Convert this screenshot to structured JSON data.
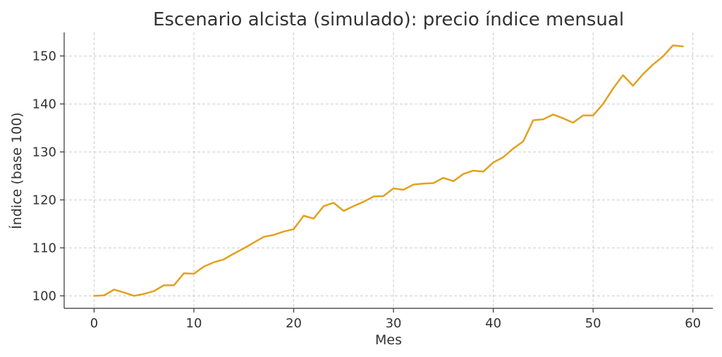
{
  "chart_data": {
    "type": "line",
    "title": "Escenario alcista (simulado): precio índice mensual",
    "xlabel": "Mes",
    "ylabel": "Índice (base 100)",
    "xlim": [
      -3,
      62
    ],
    "ylim": [
      97.4,
      154.9
    ],
    "xticks": [
      0,
      10,
      20,
      30,
      40,
      50,
      60
    ],
    "yticks": [
      100,
      110,
      120,
      130,
      140,
      150
    ],
    "grid": true,
    "line_color": "#E0A21E",
    "x": [
      0,
      1,
      2,
      3,
      4,
      5,
      6,
      7,
      8,
      9,
      10,
      11,
      12,
      13,
      14,
      15,
      16,
      17,
      18,
      19,
      20,
      21,
      22,
      23,
      24,
      25,
      26,
      27,
      28,
      29,
      30,
      31,
      32,
      33,
      34,
      35,
      36,
      37,
      38,
      39,
      40,
      41,
      42,
      43,
      44,
      45,
      46,
      47,
      48,
      49,
      50,
      51,
      52,
      53,
      54,
      55,
      56,
      57,
      58,
      59
    ],
    "series": [
      {
        "values": [
          100.0,
          100.1,
          101.3,
          100.7,
          100.0,
          100.4,
          101.0,
          102.2,
          102.2,
          104.7,
          104.6,
          106.1,
          107.0,
          107.6,
          108.8,
          109.9,
          111.1,
          112.3,
          112.7,
          113.4,
          113.9,
          116.7,
          116.1,
          118.7,
          119.4,
          117.7,
          118.7,
          119.6,
          120.7,
          120.8,
          122.4,
          122.1,
          123.2,
          123.4,
          123.5,
          124.6,
          123.9,
          125.4,
          126.1,
          125.9,
          127.8,
          128.9,
          130.7,
          132.2,
          136.6,
          136.8,
          137.8,
          137.0,
          136.1,
          137.6,
          137.6,
          140.0,
          143.2,
          146.0,
          143.8,
          146.2,
          148.2,
          149.9,
          152.2,
          152.0
        ]
      }
    ]
  }
}
